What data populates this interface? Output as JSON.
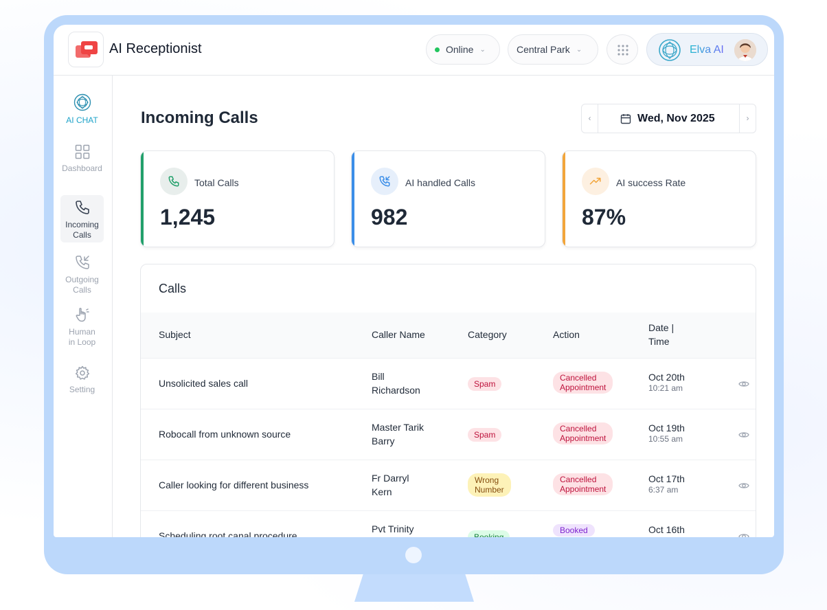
{
  "app": {
    "title": "AI Receptionist"
  },
  "header": {
    "status_label": "Online",
    "location_label": "Central Park",
    "user_name": "Elva AI"
  },
  "sidebar": {
    "items": [
      {
        "label": "AI CHAT",
        "icon": "brain-orb-icon"
      },
      {
        "label": "Dashboard",
        "icon": "grid-icon"
      },
      {
        "label": "Incoming\nCalls",
        "icon": "phone-icon",
        "active": true
      },
      {
        "label": "Outgoing\nCalls",
        "icon": "phone-outgoing-icon"
      },
      {
        "label": "Human\nin Loop",
        "icon": "hand-icon"
      },
      {
        "label": "Setting",
        "icon": "gear-icon"
      }
    ]
  },
  "main": {
    "page_title": "Incoming Calls",
    "date_label": "Wed, Nov 2025",
    "kpis": [
      {
        "label": "Total Calls",
        "value": "1,245",
        "accent": "#22a06b",
        "icon": "phone-icon"
      },
      {
        "label": "AI handled Calls",
        "value": "982",
        "accent": "#3b8ee8",
        "icon": "phone-incoming-icon"
      },
      {
        "label": "AI success Rate",
        "value": "87%",
        "accent": "#f2a53a",
        "icon": "trend-up-icon"
      }
    ],
    "calls": {
      "title": "Calls",
      "columns": [
        "Subject",
        "Caller Name",
        "Category",
        "Action",
        "Date |\nTime"
      ],
      "rows": [
        {
          "subject": "Unsolicited sales call",
          "caller": "Bill\nRichardson",
          "category": "Spam",
          "action": "Cancelled\nAppointment",
          "date": "Oct 20th",
          "time": "10:21 am"
        },
        {
          "subject": "Robocall from unknown source",
          "caller": "Master Tarik\nBarry",
          "category": "Spam",
          "action": "Cancelled\nAppointment",
          "date": "Oct 19th",
          "time": "10:55 am"
        },
        {
          "subject": "Caller looking for different business",
          "caller": "Fr Darryl\nKern",
          "category": "Wrong\nNumber",
          "action": "Cancelled\nAppointment",
          "date": "Oct 17th",
          "time": "6:37 am"
        },
        {
          "subject": "Scheduling root canal procedure",
          "caller": "Pvt Trinity",
          "category": "Booking",
          "action": "Booked",
          "date": "Oct 16th",
          "time": ""
        }
      ]
    }
  },
  "colors": {
    "monitor_frame": "#bcd8fb",
    "status_online": "#22c55e",
    "accent_ai": "#1fa3c9"
  }
}
